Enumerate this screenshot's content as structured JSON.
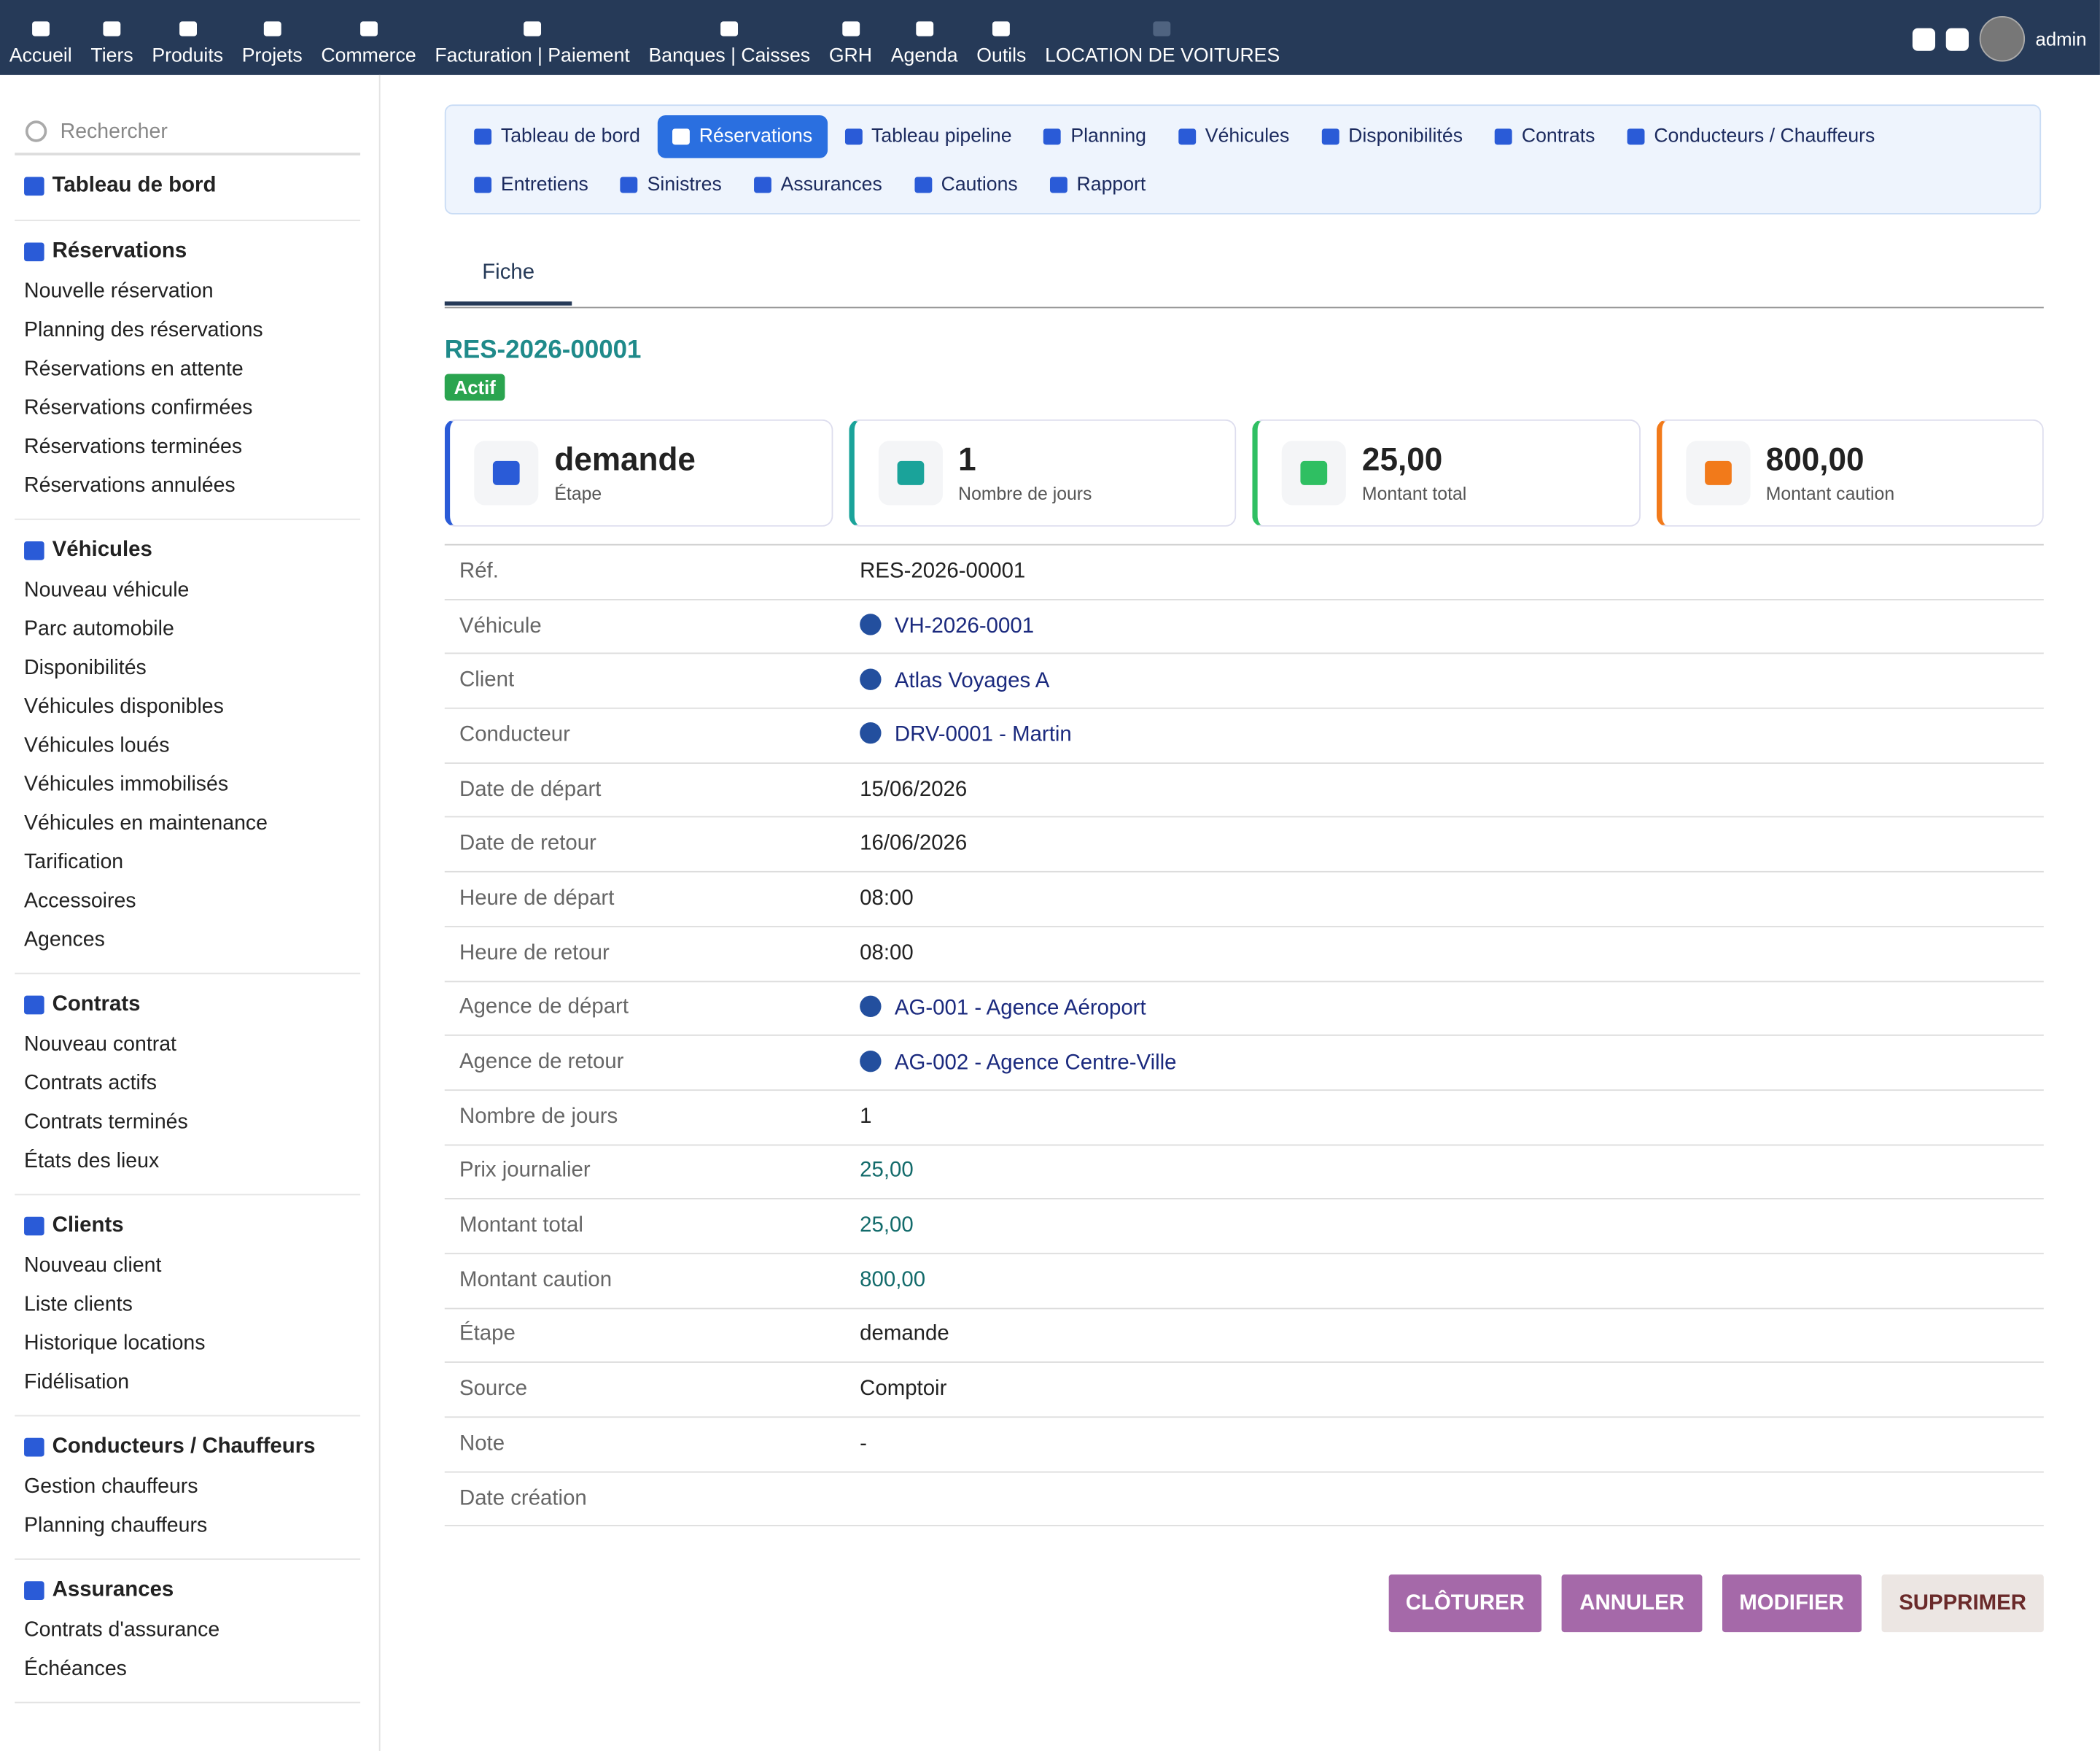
{
  "topnav": {
    "items": [
      "Accueil",
      "Tiers",
      "Produits",
      "Projets",
      "Commerce",
      "Facturation | Paiement",
      "Banques | Caisses",
      "GRH",
      "Agenda",
      "Outils",
      "LOCATION DE VOITURES"
    ],
    "user": "admin"
  },
  "sidebar": {
    "search": "Rechercher",
    "sections": [
      {
        "title": "Tableau de bord",
        "items": []
      },
      {
        "title": "Réservations",
        "items": [
          "Nouvelle réservation",
          "Planning des réservations",
          "Réservations en attente",
          "Réservations confirmées",
          "Réservations terminées",
          "Réservations annulées"
        ]
      },
      {
        "title": "Véhicules",
        "items": [
          "Nouveau véhicule",
          "Parc automobile",
          "Disponibilités",
          "Véhicules disponibles",
          "Véhicules loués",
          "Véhicules immobilisés",
          "Véhicules en maintenance",
          "Tarification",
          "Accessoires",
          "Agences"
        ]
      },
      {
        "title": "Contrats",
        "items": [
          "Nouveau contrat",
          "Contrats actifs",
          "Contrats terminés",
          "États des lieux"
        ]
      },
      {
        "title": "Clients",
        "items": [
          "Nouveau client",
          "Liste clients",
          "Historique locations",
          "Fidélisation"
        ]
      },
      {
        "title": "Conducteurs / Chauffeurs",
        "items": [
          "Gestion chauffeurs",
          "Planning chauffeurs"
        ]
      },
      {
        "title": "Assurances",
        "items": [
          "Contrats d'assurance",
          "Échéances"
        ]
      }
    ]
  },
  "subnav": {
    "tabs": [
      "Tableau de bord",
      "Réservations",
      "Tableau pipeline",
      "Planning",
      "Véhicules",
      "Disponibilités",
      "Contrats",
      "Conducteurs / Chauffeurs",
      "Entretiens",
      "Sinistres",
      "Assurances",
      "Cautions",
      "Rapport"
    ],
    "active": 1
  },
  "tab": "Fiche",
  "record": {
    "ref": "RES-2026-00001",
    "status": "Actif"
  },
  "cards": [
    {
      "value": "demande",
      "label": "Étape",
      "color": "#2a5bd7"
    },
    {
      "value": "1",
      "label": "Nombre de jours",
      "color": "#1aa39a"
    },
    {
      "value": "25,00",
      "label": "Montant total",
      "color": "#2fbf62"
    },
    {
      "value": "800,00",
      "label": "Montant caution",
      "color": "#f27a1a"
    }
  ],
  "fields": [
    {
      "label": "Réf.",
      "value": "RES-2026-00001"
    },
    {
      "label": "Véhicule",
      "value": "VH-2026-0001",
      "link": true
    },
    {
      "label": "Client",
      "value": "Atlas Voyages A",
      "link": true
    },
    {
      "label": "Conducteur",
      "value": "DRV-0001 - Martin",
      "link": true
    },
    {
      "label": "Date de départ",
      "value": "15/06/2026"
    },
    {
      "label": "Date de retour",
      "value": "16/06/2026"
    },
    {
      "label": "Heure de départ",
      "value": "08:00"
    },
    {
      "label": "Heure de retour",
      "value": "08:00"
    },
    {
      "label": "Agence de départ",
      "value": "AG-001 - Agence Aéroport",
      "link": true
    },
    {
      "label": "Agence de retour",
      "value": "AG-002 - Agence Centre-Ville",
      "link": true
    },
    {
      "label": "Nombre de jours",
      "value": "1"
    },
    {
      "label": "Prix journalier",
      "value": "25,00",
      "amount": true
    },
    {
      "label": "Montant total",
      "value": "25,00",
      "amount": true
    },
    {
      "label": "Montant caution",
      "value": "800,00",
      "amount": true
    },
    {
      "label": "Étape",
      "value": "demande"
    },
    {
      "label": "Source",
      "value": "Comptoir"
    },
    {
      "label": "Note",
      "value": "-"
    },
    {
      "label": "Date création"
    }
  ],
  "buttons": [
    "CLÔTURER",
    "ANNULER",
    "MODIFIER",
    "SUPPRIMER"
  ]
}
